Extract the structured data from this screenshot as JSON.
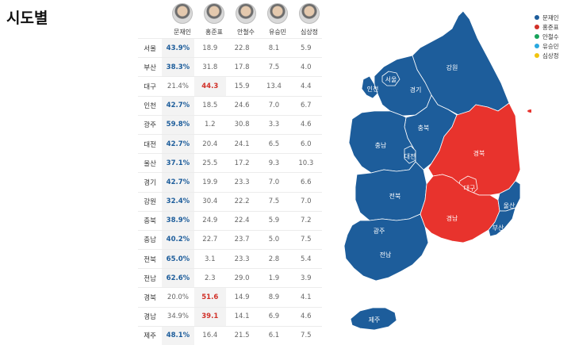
{
  "title": "시도별",
  "candidates": [
    {
      "name": "문재인",
      "color": "#1d5d9b"
    },
    {
      "name": "홍준표",
      "color": "#d13028"
    },
    {
      "name": "안철수",
      "color": "#18a35a"
    },
    {
      "name": "유승민",
      "color": "#29a8df"
    },
    {
      "name": "심상정",
      "color": "#f1c40f"
    }
  ],
  "regions": [
    {
      "name": "서울",
      "values": [
        "43.9%",
        "18.9",
        "22.8",
        "8.1",
        "5.9"
      ],
      "winner": "moon"
    },
    {
      "name": "부산",
      "values": [
        "38.3%",
        "31.8",
        "17.8",
        "7.5",
        "4.0"
      ],
      "winner": "moon"
    },
    {
      "name": "대구",
      "values": [
        "21.4%",
        "44.3",
        "15.9",
        "13.4",
        "4.4"
      ],
      "winner": "hong"
    },
    {
      "name": "인천",
      "values": [
        "42.7%",
        "18.5",
        "24.6",
        "7.0",
        "6.7"
      ],
      "winner": "moon"
    },
    {
      "name": "광주",
      "values": [
        "59.8%",
        "1.2",
        "30.8",
        "3.3",
        "4.6"
      ],
      "winner": "moon"
    },
    {
      "name": "대전",
      "values": [
        "42.7%",
        "20.4",
        "24.1",
        "6.5",
        "6.0"
      ],
      "winner": "moon"
    },
    {
      "name": "울산",
      "values": [
        "37.1%",
        "25.5",
        "17.2",
        "9.3",
        "10.3"
      ],
      "winner": "moon"
    },
    {
      "name": "경기",
      "values": [
        "42.7%",
        "19.9",
        "23.3",
        "7.0",
        "6.6"
      ],
      "winner": "moon"
    },
    {
      "name": "강원",
      "values": [
        "32.4%",
        "30.4",
        "22.2",
        "7.5",
        "7.0"
      ],
      "winner": "moon"
    },
    {
      "name": "충북",
      "values": [
        "38.9%",
        "24.9",
        "22.4",
        "5.9",
        "7.2"
      ],
      "winner": "moon"
    },
    {
      "name": "충남",
      "values": [
        "40.2%",
        "22.7",
        "23.7",
        "5.0",
        "7.5"
      ],
      "winner": "moon"
    },
    {
      "name": "전북",
      "values": [
        "65.0%",
        "3.1",
        "23.3",
        "2.8",
        "5.4"
      ],
      "winner": "moon"
    },
    {
      "name": "전남",
      "values": [
        "62.6%",
        "2.3",
        "29.0",
        "1.9",
        "3.9"
      ],
      "winner": "moon"
    },
    {
      "name": "경북",
      "values": [
        "20.0%",
        "51.6",
        "14.9",
        "8.9",
        "4.1"
      ],
      "winner": "hong"
    },
    {
      "name": "경남",
      "values": [
        "34.9%",
        "39.1",
        "14.1",
        "6.9",
        "4.6"
      ],
      "winner": "hong"
    },
    {
      "name": "제주",
      "values": [
        "48.1%",
        "16.4",
        "21.5",
        "6.1",
        "7.5"
      ],
      "winner": "moon"
    }
  ],
  "map_labels": {
    "seoul": "서울",
    "incheon": "인천",
    "gyeonggi": "경기",
    "gangwon": "강원",
    "chungbuk": "충북",
    "chungnam": "충남",
    "daejeon": "대전",
    "jeonbuk": "전북",
    "gwangju": "광주",
    "jeonnam": "전남",
    "gyeongbuk": "경북",
    "daegu": "대구",
    "gyeongnam": "경남",
    "ulsan": "울산",
    "busan": "부산",
    "jeju": "제주"
  },
  "colors": {
    "moon_blue": "#1d5d9b",
    "hong_red": "#e8332d"
  }
}
